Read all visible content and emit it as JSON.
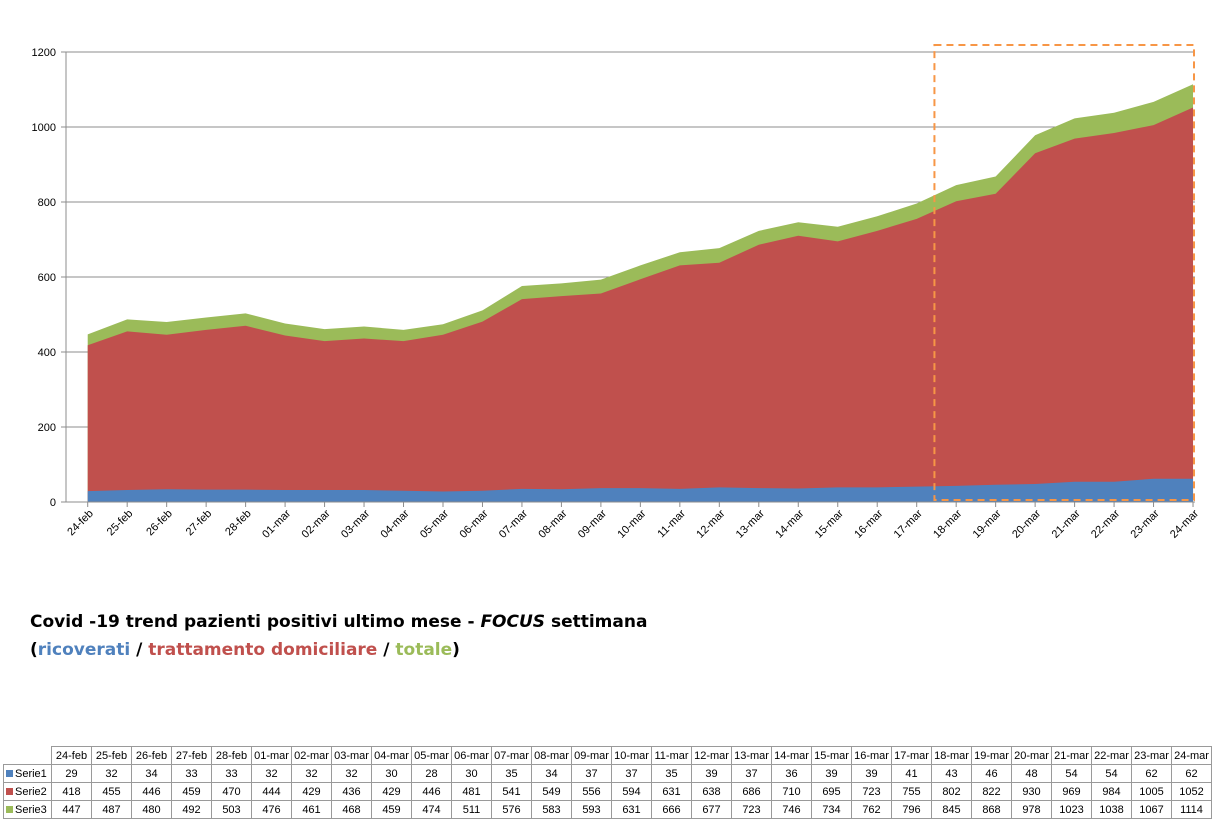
{
  "chart_data": {
    "type": "area",
    "stacked": false,
    "categories": [
      "24-feb",
      "25-feb",
      "26-feb",
      "27-feb",
      "28-feb",
      "01-mar",
      "02-mar",
      "03-mar",
      "04-mar",
      "05-mar",
      "06-mar",
      "07-mar",
      "08-mar",
      "09-mar",
      "10-mar",
      "11-mar",
      "12-mar",
      "13-mar",
      "14-mar",
      "15-mar",
      "16-mar",
      "17-mar",
      "18-mar",
      "19-mar",
      "20-mar",
      "21-mar",
      "22-mar",
      "23-mar",
      "24-mar"
    ],
    "series": [
      {
        "name": "Serie1",
        "color": "#4f81bd",
        "values": [
          29,
          32,
          34,
          33,
          33,
          32,
          32,
          32,
          30,
          28,
          30,
          35,
          34,
          37,
          37,
          35,
          39,
          37,
          36,
          39,
          39,
          41,
          43,
          46,
          48,
          54,
          54,
          62,
          62
        ]
      },
      {
        "name": "Serie2",
        "color": "#c0504d",
        "values": [
          418,
          455,
          446,
          459,
          470,
          444,
          429,
          436,
          429,
          446,
          481,
          541,
          549,
          556,
          594,
          631,
          638,
          686,
          710,
          695,
          723,
          755,
          802,
          822,
          930,
          969,
          984,
          1005,
          1052
        ]
      },
      {
        "name": "Serie3",
        "color": "#9bbb59",
        "values": [
          447,
          487,
          480,
          492,
          503,
          476,
          461,
          468,
          459,
          474,
          511,
          576,
          583,
          593,
          631,
          666,
          677,
          723,
          746,
          734,
          762,
          796,
          845,
          868,
          978,
          1023,
          1038,
          1067,
          1114
        ]
      }
    ],
    "ylim": [
      0,
      1200
    ],
    "yticks": [
      "0",
      "200",
      "400",
      "600",
      "800",
      "1000",
      "1200"
    ],
    "grid": true,
    "highlight_color": "#f79646"
  },
  "caption": {
    "line1_prefix": "Covid -19 trend pazienti positivi ultimo mese - ",
    "line1_focus": "FOCUS",
    "line1_suffix": " settimana",
    "open_paren": "(",
    "ricoverati": "ricoverati",
    "sep1": " / ",
    "trattamento": "trattamento domiciliare",
    "sep2": " / ",
    "totale": "totale",
    "close_paren": ")"
  }
}
